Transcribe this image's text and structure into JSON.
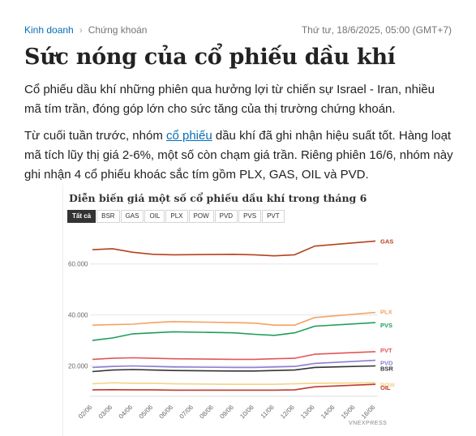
{
  "breadcrumb": {
    "category": "Kinh doanh",
    "separator": "›",
    "subcategory": "Chứng khoán"
  },
  "date": "Thứ tư, 18/6/2025, 05:00 (GMT+7)",
  "title": "Sức nóng của cổ phiếu dầu khí",
  "para1": "Cổ phiếu dầu khí những phiên qua hưởng lợi từ chiến sự Israel - Iran, nhiều mã tím trần, đóng góp lớn cho sức tăng của thị trường chứng khoán.",
  "para2": {
    "before": "Từ cuối tuần trước, nhóm ",
    "link": "cổ phiếu",
    "after": " dầu khí đã ghi nhận hiệu suất tốt. Hàng loạt mã tích lũy thị giá 2-6%, một số còn chạm giá trần. Riêng phiên 16/6, nhóm này ghi nhận 4 cổ phiếu khoác sắc tím gồm PLX, GAS, OIL và PVD."
  },
  "chart": {
    "title": "Diễn biến giá một số cổ phiếu dầu khí trong tháng 6",
    "tabs": [
      "Tất cả",
      "BSR",
      "GAS",
      "OIL",
      "PLX",
      "POW",
      "PVD",
      "PVS",
      "PVT"
    ],
    "active_tab": "Tất cả",
    "brand": "VNEXPRESS"
  },
  "chart_data": {
    "type": "line",
    "title": "Diễn biến giá một số cổ phiếu dầu khí trong tháng 6",
    "x": [
      "02/06",
      "03/06",
      "04/06",
      "05/06",
      "06/06",
      "09/06",
      "10/06",
      "11/06",
      "12/06",
      "13/06",
      "16/06"
    ],
    "x_ticks": [
      "02/06",
      "03/06",
      "04/06",
      "05/06",
      "06/06",
      "07/06",
      "08/06",
      "09/06",
      "10/06",
      "11/06",
      "12/06",
      "13/06",
      "14/06",
      "15/06",
      "16/06"
    ],
    "y_ticks": [
      "20.000",
      "40.000",
      "60.000"
    ],
    "ylim": [
      10000,
      72000
    ],
    "grid": true,
    "series": [
      {
        "name": "GAS",
        "color": "#b5411f",
        "values": [
          65600,
          66000,
          64600,
          63800,
          63600,
          63800,
          63600,
          63200,
          63600,
          67000,
          69000
        ]
      },
      {
        "name": "PLX",
        "color": "#f4a261",
        "values": [
          36000,
          36200,
          36400,
          37000,
          37400,
          37000,
          36800,
          36000,
          36000,
          39000,
          41000
        ]
      },
      {
        "name": "PVS",
        "color": "#1e9e5a",
        "values": [
          30000,
          31000,
          32600,
          33000,
          33400,
          33000,
          32400,
          32000,
          33000,
          35600,
          37000
        ]
      },
      {
        "name": "PVT",
        "color": "#e15759",
        "values": [
          22600,
          23000,
          23200,
          23000,
          22800,
          22600,
          22600,
          22800,
          23000,
          24600,
          25600
        ]
      },
      {
        "name": "PVD",
        "color": "#8b7fd4",
        "values": [
          19400,
          19800,
          20000,
          19800,
          19600,
          19400,
          19400,
          19600,
          19800,
          21000,
          22200
        ]
      },
      {
        "name": "BSR",
        "color": "#333333",
        "values": [
          17800,
          18400,
          18600,
          18400,
          18200,
          18000,
          18000,
          18200,
          18400,
          19400,
          20000
        ]
      },
      {
        "name": "POW",
        "color": "#f6d28b",
        "values": [
          13000,
          13400,
          13200,
          13200,
          13000,
          12800,
          12800,
          12800,
          13000,
          13200,
          13400
        ]
      },
      {
        "name": "OIL",
        "color": "#c0392b",
        "values": [
          10600,
          10700,
          10600,
          10600,
          10500,
          10500,
          10500,
          10500,
          10600,
          11800,
          12800
        ]
      }
    ]
  }
}
